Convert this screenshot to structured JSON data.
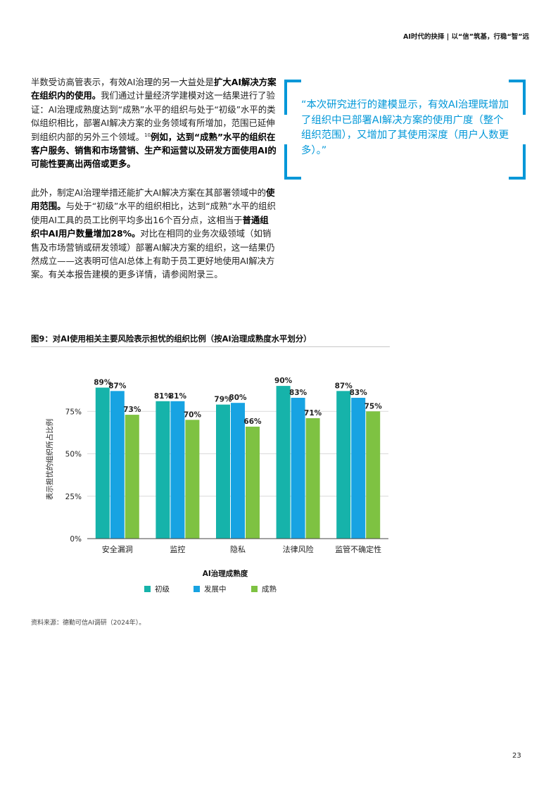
{
  "header": "AI时代的抉择 | 以“信”筑基，行稳“智”远",
  "para1": [
    {
      "t": "半数受访高管表示，有效AI治理的另一大益处是"
    },
    {
      "t": "扩大AI解决方案在组织内的使用。",
      "b": true
    },
    {
      "t": "我们通过计量经济学建模对这一结果进行了验证：AI治理成熟度达到“成熟”水平的组织与处于“初级”水平的类似组织相比，部署AI解决方案的业务领域有所增加，范围已延伸到组织内部的另外三个领域。"
    },
    {
      "t": "10",
      "sup": true
    },
    {
      "t": "例如，达到“成熟”水平的组织在客户服务、销售和市场营销、生产和运营以及研发方面使用AI的可能性要高出两倍或更多。",
      "b": true
    }
  ],
  "para2": [
    {
      "t": "此外，制定AI治理举措还能扩大AI解决方案在其部署领域中的"
    },
    {
      "t": "使用范围。",
      "b": true
    },
    {
      "t": "与处于“初级”水平的组织相比，达到“成熟”水平的组织使用AI工具的员工比例平均多出16个百分点，这相当于"
    },
    {
      "t": "普通组织中AI用户数量增加28%。",
      "b": true
    },
    {
      "t": "对比在相同的业务次级领域（如销售及市场营销或研发领域）部署AI解决方案的组织，这一结果仍然成立——这表明可信AI总体上有助于员工更好地使用AI解决方案。有关本报告建模的更多详情，请参阅附录三。"
    }
  ],
  "quote": "“本次研究进行的建模显示，有效AI治理既增加了组织中已部署AI解决方案的使用广度（整个组织范围），又增加了其使用深度（用户人数更多）。”",
  "figure_title": "图9：对AI使用相关主要风险表示担忧的组织比例（按AI治理成熟度水平划分）",
  "source": "资料来源：德勤可信AI调研（2024年）。",
  "page_number": "23",
  "chart_data": {
    "type": "bar",
    "categories": [
      "安全漏洞",
      "监控",
      "隐私",
      "法律风险",
      "监管不确定性"
    ],
    "series": [
      {
        "name": "初级",
        "values": [
          89,
          81,
          79,
          90,
          87
        ],
        "color": "#16b3aa"
      },
      {
        "name": "发展中",
        "values": [
          87,
          81,
          80,
          83,
          83
        ],
        "color": "#17a3e2"
      },
      {
        "name": "成熟",
        "values": [
          73,
          70,
          66,
          71,
          75
        ],
        "color": "#7ec242"
      }
    ],
    "ylabel": "表示担忧的组织所占比例",
    "xlabel": "AI治理成熟度",
    "yticks": [
      "0%",
      "25%",
      "50%",
      "75%"
    ],
    "ylim": [
      0,
      100
    ],
    "value_suffix": "%",
    "grid": true,
    "legend": "bottom"
  }
}
